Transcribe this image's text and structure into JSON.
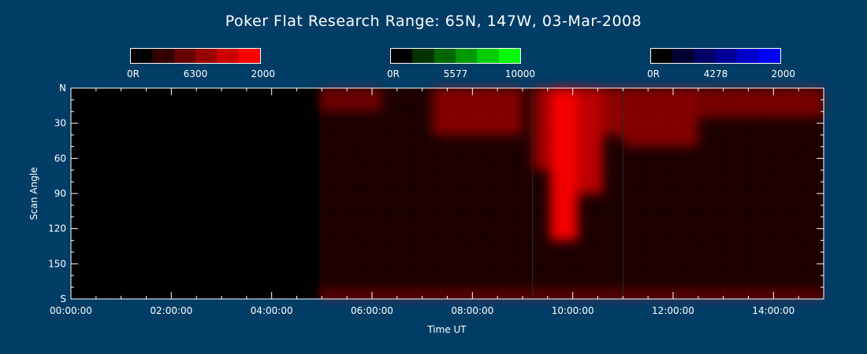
{
  "title": "Poker Flat Research Range: 65N, 147W, 03-Mar-2008",
  "colorbars": [
    {
      "name": "red",
      "labels": [
        "0R",
        "6300",
        "2000"
      ],
      "colors": [
        "#000000",
        "#330000",
        "#660000",
        "#990000",
        "#cc0000",
        "#ff0000"
      ]
    },
    {
      "name": "green",
      "labels": [
        "0R",
        "5577",
        "10000"
      ],
      "colors": [
        "#000000",
        "#003300",
        "#006600",
        "#009900",
        "#00cc00",
        "#00ff00"
      ]
    },
    {
      "name": "blue",
      "labels": [
        "0R",
        "4278",
        "2000"
      ],
      "colors": [
        "#000000",
        "#000033",
        "#000066",
        "#000099",
        "#0000cc",
        "#0000ff"
      ]
    }
  ],
  "chart_data": {
    "type": "heatmap",
    "xlabel": "Time UT",
    "ylabel": "Scan Angle",
    "xlim": [
      0,
      15
    ],
    "ylim": [
      0,
      180
    ],
    "y_inverted": true,
    "x_ticks": [
      {
        "value": 0,
        "label": "00:00:00"
      },
      {
        "value": 2,
        "label": "02:00:00"
      },
      {
        "value": 4,
        "label": "04:00:00"
      },
      {
        "value": 6,
        "label": "06:00:00"
      },
      {
        "value": 8,
        "label": "08:00:00"
      },
      {
        "value": 10,
        "label": "10:00:00"
      },
      {
        "value": 12,
        "label": "12:00:00"
      },
      {
        "value": 14,
        "label": "14:00:00"
      }
    ],
    "y_ticks": [
      {
        "value": 0,
        "label": "N"
      },
      {
        "value": 30,
        "label": "30"
      },
      {
        "value": 60,
        "label": "60"
      },
      {
        "value": 90,
        "label": "90"
      },
      {
        "value": 120,
        "label": "120"
      },
      {
        "value": 150,
        "label": "150"
      },
      {
        "value": 180,
        "label": "S"
      }
    ],
    "data_start": 4.95,
    "vertical_lines": [
      9.2,
      11.0
    ],
    "emission_regions": [
      {
        "t": [
          4.95,
          6.2
        ],
        "angle": [
          0,
          20
        ],
        "intensity": 0.35
      },
      {
        "t": [
          7.2,
          9.0
        ],
        "angle": [
          0,
          40
        ],
        "intensity": 0.45
      },
      {
        "t": [
          9.2,
          9.65
        ],
        "angle": [
          0,
          70
        ],
        "intensity": 0.55
      },
      {
        "t": [
          9.55,
          10.1
        ],
        "angle": [
          0,
          130
        ],
        "intensity": 0.95
      },
      {
        "t": [
          10.1,
          10.6
        ],
        "angle": [
          0,
          90
        ],
        "intensity": 0.7
      },
      {
        "t": [
          10.6,
          11.0
        ],
        "angle": [
          0,
          40
        ],
        "intensity": 0.5
      },
      {
        "t": [
          11.0,
          12.5
        ],
        "angle": [
          0,
          50
        ],
        "intensity": 0.45
      },
      {
        "t": [
          12.5,
          15.0
        ],
        "angle": [
          0,
          25
        ],
        "intensity": 0.4
      },
      {
        "t": [
          4.95,
          15.0
        ],
        "angle": [
          172,
          180
        ],
        "intensity": 0.35
      }
    ]
  }
}
